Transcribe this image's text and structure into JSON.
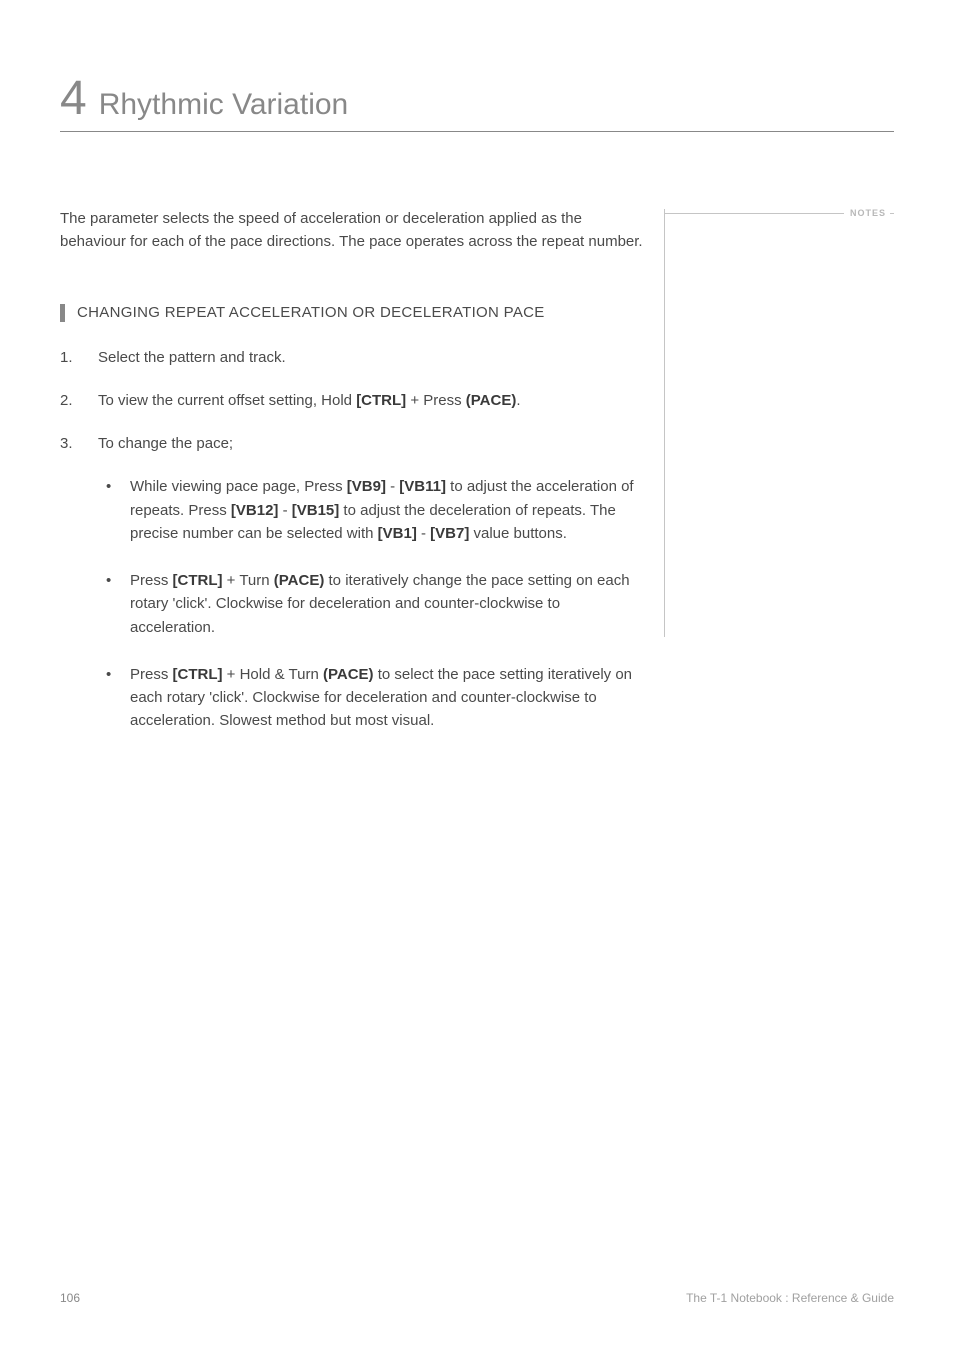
{
  "chapter": {
    "number": "4",
    "title": "Rhythmic Variation"
  },
  "notes_label": "NOTES",
  "intro_paragraph": "The parameter selects the speed of acceleration or deceleration applied as the behaviour for each of the pace directions. The pace operates across the repeat number.",
  "section_heading": "CHANGING REPEAT ACCELERATION OR DECELERATION PACE",
  "list": {
    "item1": "Select the pattern and track.",
    "item2_pre": "To view the current offset setting, Hold ",
    "item2_bold1": "[CTRL]",
    "item2_mid": " + Press ",
    "item2_bold2": "(PACE)",
    "item2_post": ".",
    "item3": "To change the pace;",
    "bullets": {
      "b1_pre": "While viewing pace page, Press ",
      "b1_bold1": "[VB9]",
      "b1_mid1": " - ",
      "b1_bold2": "[VB11]",
      "b1_mid2": " to adjust the acceleration of repeats. Press ",
      "b1_bold3": "[VB12]",
      "b1_mid3": " - ",
      "b1_bold4": "[VB15]",
      "b1_mid4": " to adjust the deceleration of repeats. The precise number can be selected with ",
      "b1_bold5": "[VB1]",
      "b1_mid5": " - ",
      "b1_bold6": "[VB7]",
      "b1_post": " value buttons.",
      "b2_pre": "Press ",
      "b2_bold1": "[CTRL]",
      "b2_mid1": " + Turn ",
      "b2_bold2": "(PACE)",
      "b2_post": " to iteratively change the pace setting on each rotary 'click'. Clockwise for deceleration and counter-clockwise to acceleration.",
      "b3_pre": "Press ",
      "b3_bold1": "[CTRL]",
      "b3_mid1": " + Hold & Turn ",
      "b3_bold2": "(PACE)",
      "b3_post": " to select the pace setting iteratively on each rotary 'click'. Clockwise for deceleration and counter-clockwise to acceleration. Slowest method but most visual."
    }
  },
  "footer": {
    "page_number": "106",
    "text": "The T-1 Notebook : Reference & Guide"
  },
  "colors": {
    "text_primary": "#4a4a4a",
    "text_muted": "#888888",
    "border_light": "#c5c5c5",
    "background": "#ffffff"
  },
  "typography": {
    "body_fontsize": 15,
    "chapter_num_fontsize": 48,
    "chapter_title_fontsize": 30,
    "footer_fontsize": 12
  }
}
